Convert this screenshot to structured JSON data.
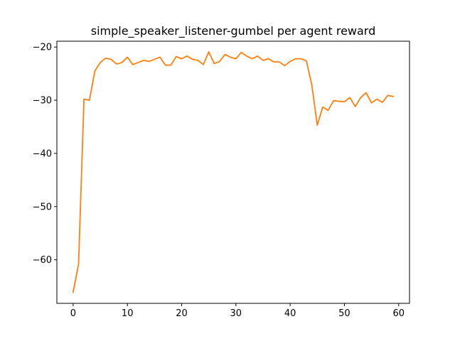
{
  "chart_data": {
    "type": "line",
    "title": "simple_speaker_listener-gumbel per agent reward",
    "xlabel": "",
    "ylabel": "",
    "xlim": [
      -3,
      62
    ],
    "ylim": [
      -68.2,
      -18.9
    ],
    "xticks": [
      0,
      10,
      20,
      30,
      40,
      50,
      60
    ],
    "yticks": [
      -60,
      -50,
      -40,
      -30,
      -20
    ],
    "xtick_labels": [
      "0",
      "10",
      "20",
      "30",
      "40",
      "50",
      "60"
    ],
    "ytick_labels": [
      "−60",
      "−50",
      "−40",
      "−30",
      "−20"
    ],
    "grid": false,
    "series": [
      {
        "color": "#ff7f0e",
        "x": [
          0,
          1,
          2,
          3,
          4,
          5,
          6,
          7,
          8,
          9,
          10,
          11,
          12,
          13,
          14,
          15,
          16,
          17,
          18,
          19,
          20,
          21,
          22,
          23,
          24,
          25,
          26,
          27,
          28,
          29,
          30,
          31,
          32,
          33,
          34,
          35,
          36,
          37,
          38,
          39,
          40,
          41,
          42,
          43,
          44,
          45,
          46,
          47,
          48,
          49,
          50,
          51,
          52,
          53,
          54,
          55,
          56,
          57,
          58,
          59
        ],
        "values": [
          -66.1,
          -60.8,
          -29.8,
          -30.0,
          -24.5,
          -22.9,
          -22.1,
          -22.3,
          -23.2,
          -22.9,
          -21.9,
          -23.3,
          -22.9,
          -22.5,
          -22.7,
          -22.3,
          -21.9,
          -23.4,
          -23.4,
          -21.8,
          -22.2,
          -21.7,
          -22.3,
          -22.5,
          -23.3,
          -20.9,
          -23.1,
          -22.7,
          -21.4,
          -21.9,
          -22.2,
          -21.0,
          -21.7,
          -22.2,
          -21.7,
          -22.5,
          -22.2,
          -22.8,
          -22.8,
          -23.5,
          -22.7,
          -22.2,
          -22.2,
          -22.6,
          -27.2,
          -34.7,
          -31.3,
          -31.9,
          -30.1,
          -30.2,
          -30.3,
          -29.5,
          -31.2,
          -29.5,
          -28.6,
          -30.5,
          -29.8,
          -30.4,
          -29.1,
          -29.3
        ]
      }
    ]
  }
}
